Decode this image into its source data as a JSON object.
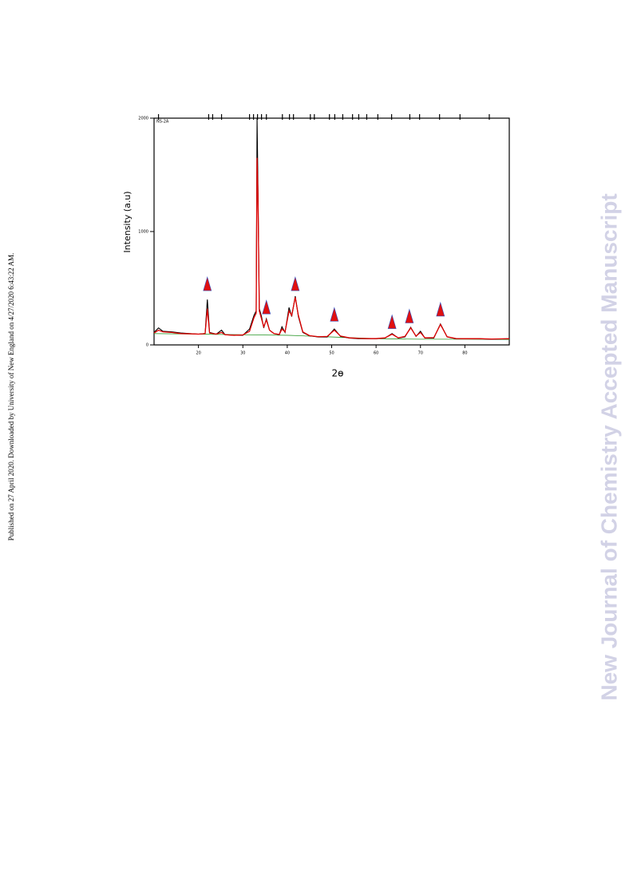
{
  "side_note": "Published on 27 April 2020. Downloaded by University of New England on 4/27/2020 6:43:22 AM.",
  "watermark": "New Journal of Chemistry Accepted Manuscript",
  "chart_data": {
    "type": "line",
    "sample_label": "NS-2A",
    "x_label": "2ɵ",
    "y_label": "Intensity (a.u)",
    "xlim": [
      10,
      90
    ],
    "xticks": [
      20,
      30,
      40,
      50,
      60,
      70,
      80
    ],
    "ylim": [
      0,
      2000
    ],
    "yticks": [
      0,
      1000,
      2000
    ],
    "x": [
      10,
      11,
      12,
      14,
      16,
      18,
      20,
      21.5,
      22.0,
      22.5,
      24,
      25.2,
      26,
      28,
      30,
      31.5,
      32.5,
      33.0,
      33.2,
      33.4,
      33.7,
      34.2,
      34.7,
      35.3,
      36,
      37,
      38.2,
      38.8,
      39.5,
      40.4,
      41.0,
      41.8,
      42.5,
      43.5,
      45,
      47,
      49,
      50.6,
      52,
      54,
      56,
      58,
      60,
      62,
      63.6,
      65,
      66.5,
      67.8,
      69,
      70,
      71,
      73,
      74.5,
      76,
      78,
      80,
      83,
      86,
      90
    ],
    "series": [
      {
        "color": "#000000",
        "values": [
          110,
          150,
          120,
          115,
          105,
          100,
          95,
          100,
          400,
          110,
          95,
          130,
          90,
          85,
          85,
          140,
          260,
          300,
          2000,
          1400,
          320,
          250,
          150,
          230,
          130,
          100,
          90,
          160,
          110,
          330,
          250,
          430,
          250,
          110,
          80,
          70,
          70,
          140,
          75,
          60,
          55,
          55,
          55,
          60,
          100,
          60,
          70,
          155,
          75,
          120,
          60,
          60,
          185,
          70,
          55,
          55,
          55,
          50,
          55
        ]
      },
      {
        "color": "#e00000",
        "values": [
          105,
          130,
          115,
          110,
          100,
          98,
          95,
          100,
          320,
          105,
          95,
          110,
          90,
          85,
          88,
          120,
          240,
          280,
          1650,
          1330,
          300,
          230,
          160,
          220,
          130,
          100,
          92,
          140,
          115,
          300,
          260,
          420,
          260,
          115,
          82,
          72,
          75,
          130,
          78,
          62,
          58,
          56,
          56,
          62,
          95,
          62,
          75,
          150,
          78,
          110,
          62,
          64,
          180,
          72,
          56,
          55,
          55,
          52,
          55
        ]
      }
    ],
    "background": {
      "color": "#2e9a2e",
      "x": [
        10,
        20,
        30,
        40,
        50,
        60,
        70,
        80,
        90
      ],
      "values": [
        100,
        95,
        90,
        85,
        70,
        55,
        50,
        50,
        48
      ]
    },
    "peak_markers": {
      "x": [
        22.0,
        35.3,
        41.8,
        50.6,
        63.6,
        67.5,
        74.5
      ],
      "values": [
        535,
        330,
        535,
        265,
        200,
        250,
        310
      ]
    },
    "reference_peaks": [
      11.0,
      22.3,
      23.2,
      25.2,
      31.5,
      32.4,
      33.3,
      34.2,
      35.3,
      38.9,
      40.5,
      41.4,
      45.2,
      46.1,
      49.5,
      50.7,
      52.5,
      54.7,
      56.1,
      57.9,
      60.4,
      63.5,
      67.6,
      69.8,
      74.3,
      78.9,
      85.5
    ]
  }
}
